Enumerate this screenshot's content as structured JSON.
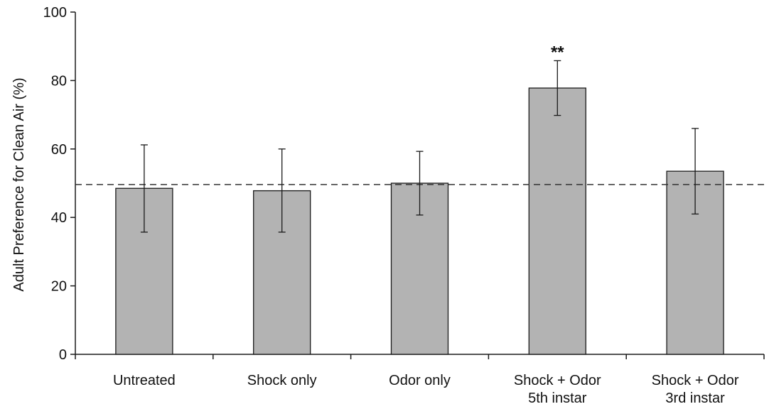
{
  "chart_data": {
    "type": "bar",
    "categories": [
      [
        "Untreated"
      ],
      [
        "Shock only"
      ],
      [
        "Odor only"
      ],
      [
        "Shock + Odor",
        "5th  instar"
      ],
      [
        "Shock + Odor",
        "3rd instar"
      ]
    ],
    "values": [
      48.5,
      47.8,
      50.0,
      77.8,
      53.5
    ],
    "error_high": [
      61.2,
      60.0,
      59.3,
      85.8,
      66.0
    ],
    "error_low": [
      35.7,
      35.7,
      40.7,
      69.8,
      41.0
    ],
    "annotations": [
      "",
      "",
      "",
      "**",
      ""
    ],
    "reference_line": 49.6,
    "ylabel": "Adult Preference for Clean Air (%)",
    "xlabel": "",
    "title": "",
    "ylim": [
      0,
      100
    ],
    "yticks": [
      0,
      20,
      40,
      60,
      80,
      100
    ],
    "grid": false,
    "legend": "none",
    "colors": {
      "bar": "#b3b3b3",
      "bar_edge": "#1a1a1a",
      "axis": "#1a1a1a",
      "reference_line": "#333333"
    }
  }
}
